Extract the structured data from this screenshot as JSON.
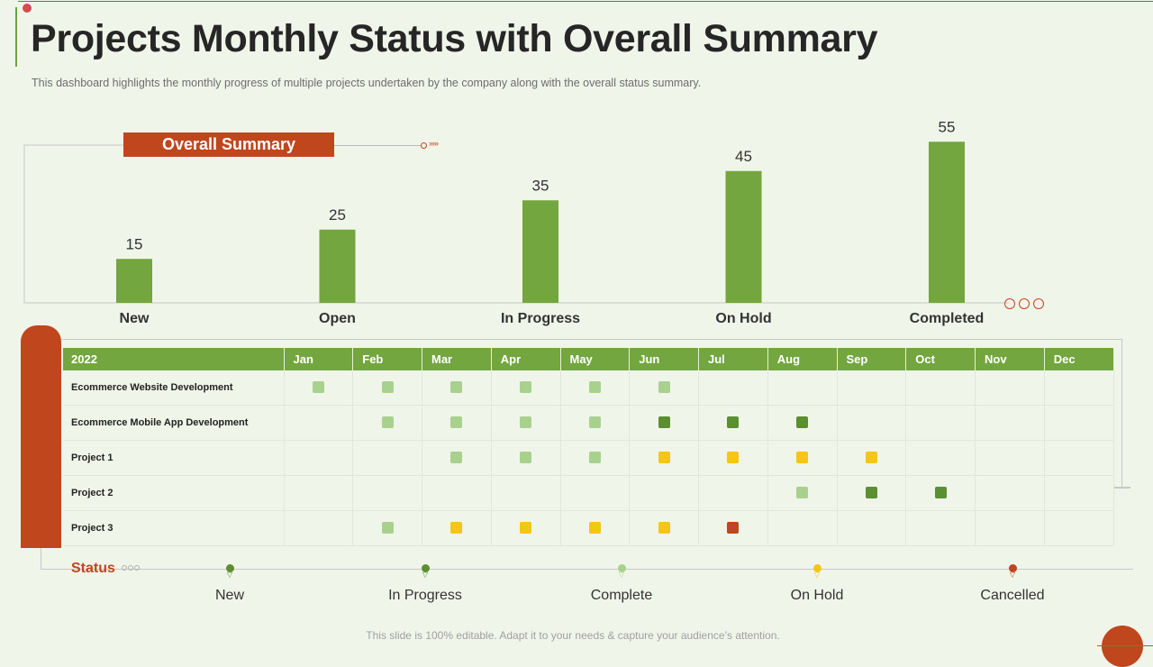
{
  "title": "Projects Monthly Status with Overall Summary",
  "subtitle": "This dashboard highlights the monthly progress of multiple projects undertaken  by the company along with the overall  status summary.",
  "summary_label": "Overall Summary",
  "colors": {
    "bar": "#73a63e",
    "accent": "#c0461e",
    "new": "#5c8f2f",
    "in_progress": "#5c8f2f",
    "complete": "#a9d18e",
    "on_hold": "#f5c518",
    "cancelled": "#c0461e"
  },
  "chart_data": {
    "type": "bar",
    "title": "Overall Summary",
    "categories": [
      "New",
      "Open",
      "In Progress",
      "On Hold",
      "Completed"
    ],
    "values": [
      15,
      25,
      35,
      45,
      55
    ],
    "xlabel": "",
    "ylabel": "",
    "ylim": [
      0,
      60
    ],
    "grid": false
  },
  "table": {
    "year_label": "2022",
    "months": [
      "Jan",
      "Feb",
      "Mar",
      "Apr",
      "May",
      "Jun",
      "Jul",
      "Aug",
      "Sep",
      "Oct",
      "Nov",
      "Dec"
    ],
    "rows": [
      {
        "name": "Ecommerce Website Development",
        "cells": [
          "complete",
          "complete",
          "complete",
          "complete",
          "complete",
          "complete",
          "",
          "",
          "",
          "",
          "",
          ""
        ]
      },
      {
        "name": "Ecommerce Mobile App Development",
        "cells": [
          "",
          "complete",
          "complete",
          "complete",
          "complete",
          "in_progress",
          "in_progress",
          "in_progress",
          "",
          "",
          "",
          ""
        ]
      },
      {
        "name": "Project 1",
        "cells": [
          "",
          "",
          "complete",
          "complete",
          "complete",
          "on_hold",
          "on_hold",
          "on_hold",
          "on_hold",
          "",
          "",
          ""
        ]
      },
      {
        "name": "Project 2",
        "cells": [
          "",
          "",
          "",
          "",
          "",
          "",
          "",
          "complete",
          "in_progress",
          "in_progress",
          "",
          ""
        ]
      },
      {
        "name": "Project 3",
        "cells": [
          "",
          "complete",
          "on_hold",
          "on_hold",
          "on_hold",
          "on_hold",
          "cancelled",
          "",
          "",
          "",
          "",
          ""
        ]
      }
    ]
  },
  "status_legend": {
    "title": "Status",
    "items": [
      {
        "key": "new",
        "label": "New"
      },
      {
        "key": "in_progress",
        "label": "In Progress"
      },
      {
        "key": "complete",
        "label": "Complete"
      },
      {
        "key": "on_hold",
        "label": "On Hold"
      },
      {
        "key": "cancelled",
        "label": "Cancelled"
      }
    ]
  },
  "footer": "This slide is 100% editable. Adapt it to your needs & capture your audience’s attention."
}
